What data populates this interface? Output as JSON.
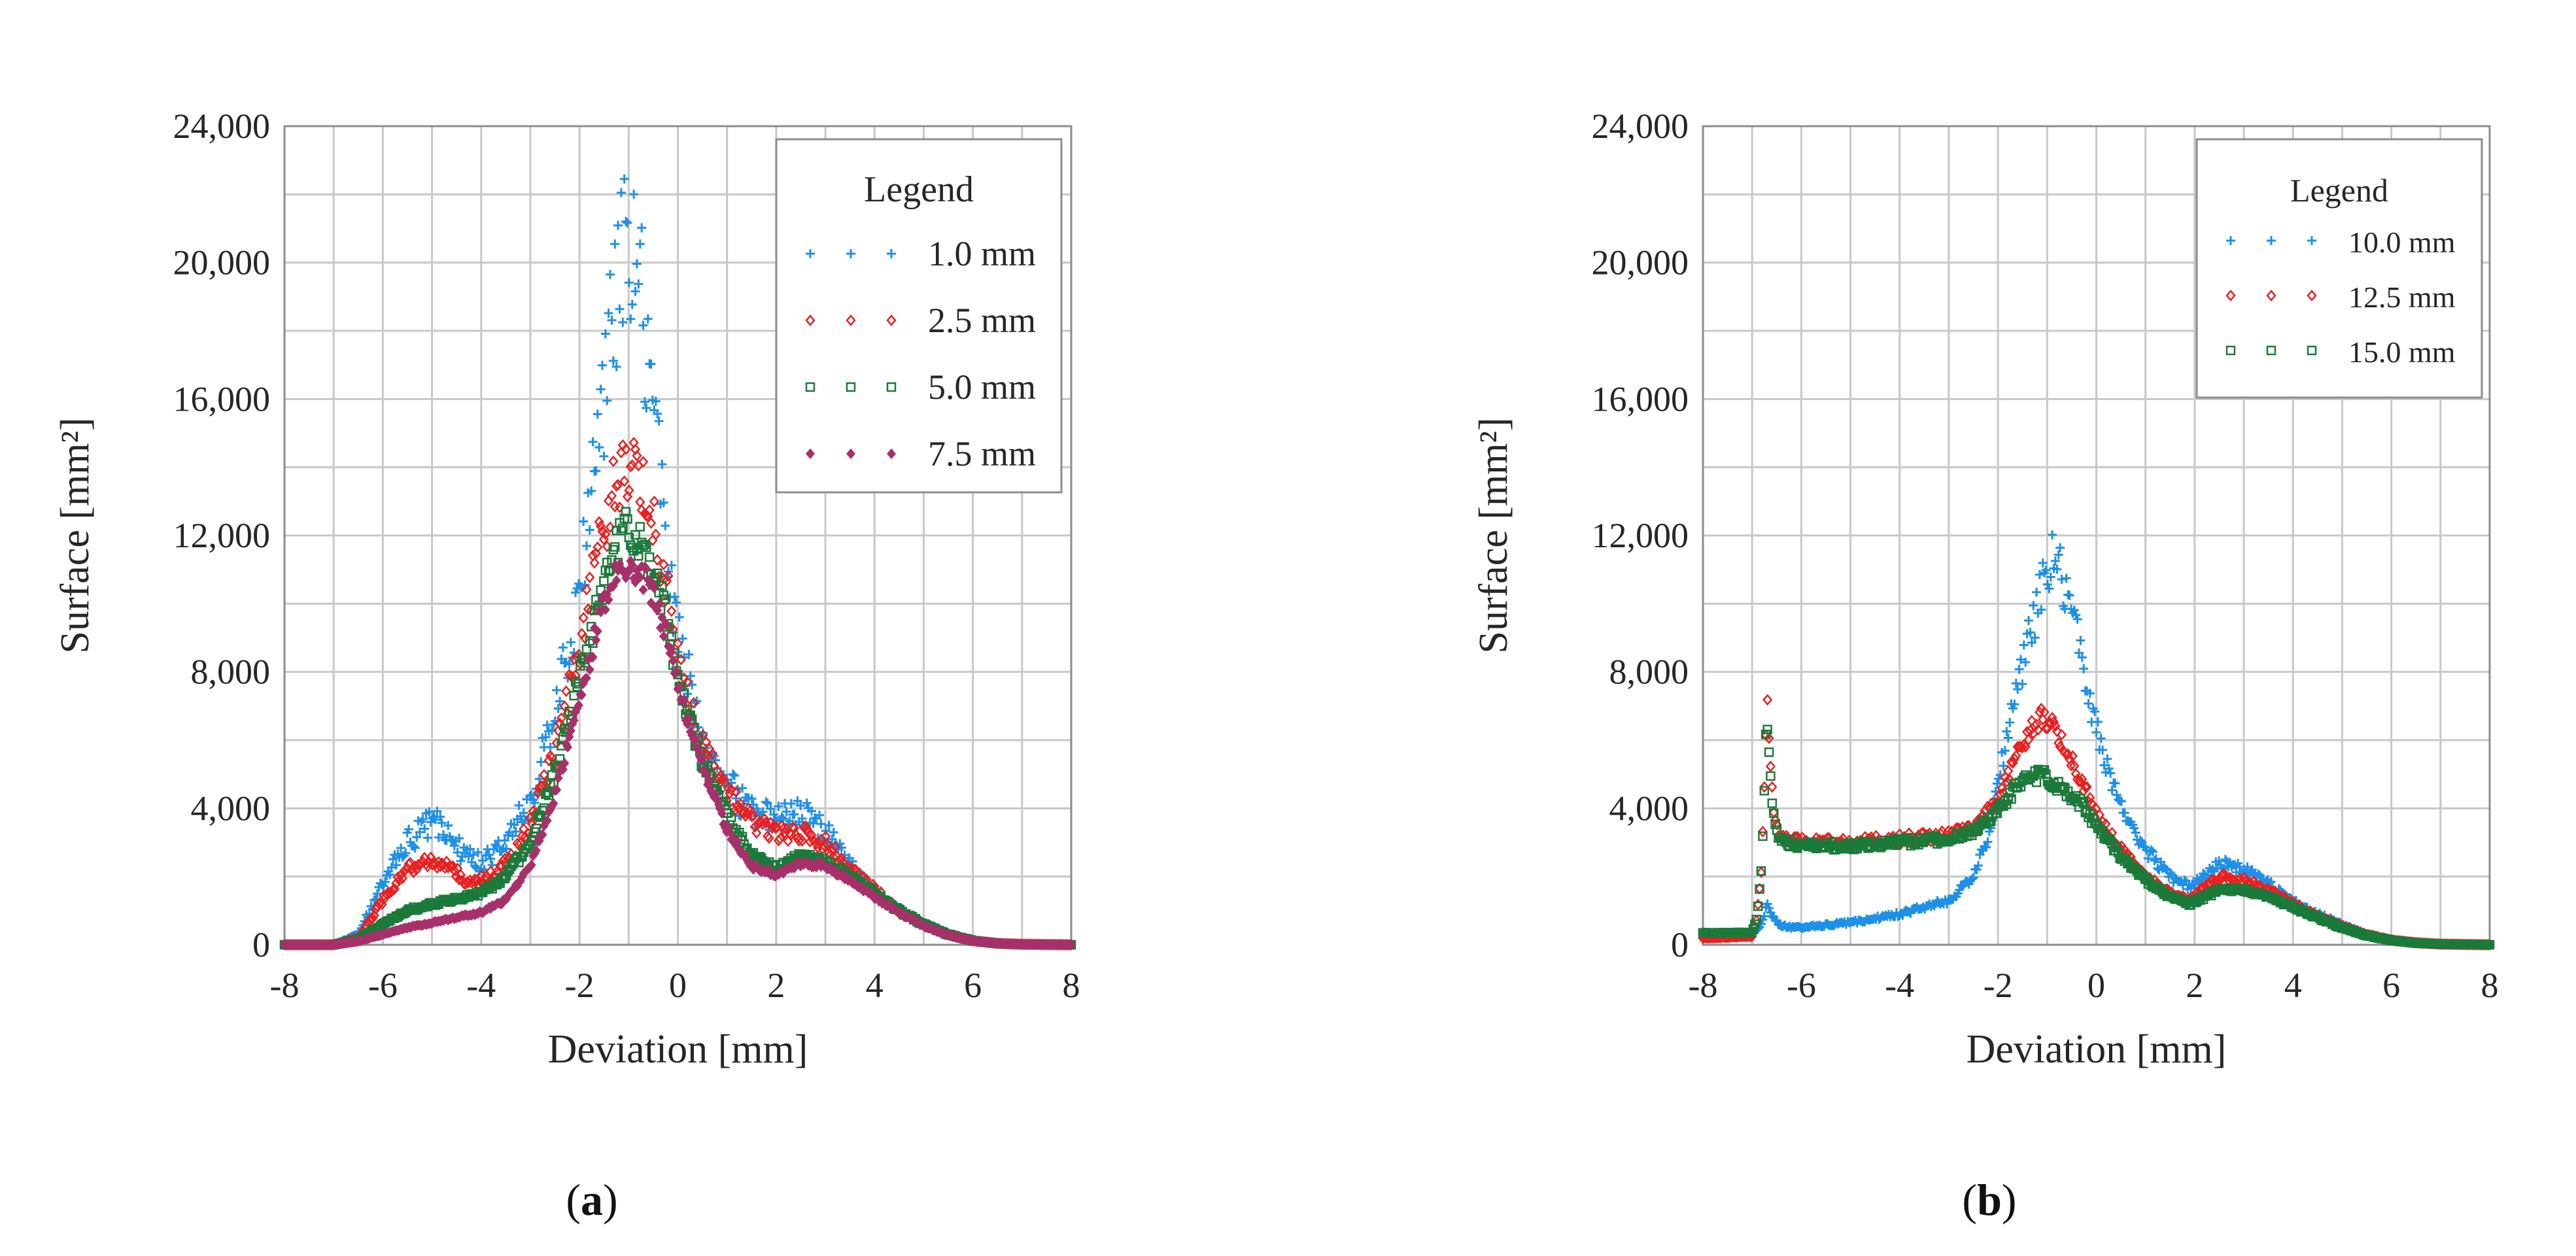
{
  "chart_data": [
    {
      "type": "scatter",
      "panel": "a",
      "caption_letter": "a",
      "xlabel": "Deviation [mm]",
      "ylabel": "Surface [mm²]",
      "xlim": [
        -8,
        8
      ],
      "ylim": [
        0,
        24000
      ],
      "xticks": [
        -8,
        -6,
        -4,
        -2,
        0,
        2,
        4,
        6,
        8
      ],
      "yticks": [
        0,
        4000,
        8000,
        12000,
        16000,
        20000,
        24000
      ],
      "xtick_labels": [
        "-8",
        "-6",
        "-4",
        "-2",
        "0",
        "2",
        "4",
        "6",
        "8"
      ],
      "ytick_labels": [
        "0",
        "4,000",
        "8,000",
        "12,000",
        "16,000",
        "20,000",
        "24,000"
      ],
      "grid": true,
      "legend": {
        "title": "Legend",
        "position": "top-right"
      },
      "series": [
        {
          "name": "1.0 mm",
          "marker": "plus",
          "color": "#1e90e8",
          "profile": [
            [
              -8,
              0
            ],
            [
              -7,
              0
            ],
            [
              -6.5,
              300
            ],
            [
              -6,
              1800
            ],
            [
              -5.5,
              3000
            ],
            [
              -5,
              3600
            ],
            [
              -4.7,
              3400
            ],
            [
              -4.4,
              2700
            ],
            [
              -4,
              2400
            ],
            [
              -3.6,
              2800
            ],
            [
              -3,
              4200
            ],
            [
              -2.5,
              6800
            ],
            [
              -2,
              10500
            ],
            [
              -1.6,
              14500
            ],
            [
              -1.3,
              18800
            ],
            [
              -1,
              21000
            ],
            [
              -0.8,
              19800
            ],
            [
              -0.6,
              17000
            ],
            [
              -0.3,
              13000
            ],
            [
              0,
              9000
            ],
            [
              0.5,
              6000
            ],
            [
              1,
              4700
            ],
            [
              1.5,
              3900
            ],
            [
              2,
              3700
            ],
            [
              2.5,
              3900
            ],
            [
              3,
              3300
            ],
            [
              3.5,
              2300
            ],
            [
              4,
              1600
            ],
            [
              4.5,
              1000
            ],
            [
              5,
              600
            ],
            [
              5.5,
              300
            ],
            [
              6,
              120
            ],
            [
              6.5,
              40
            ],
            [
              7,
              15
            ],
            [
              8,
              0
            ]
          ],
          "noise": 0.12
        },
        {
          "name": "2.5 mm",
          "marker": "diamond-open",
          "color": "#e82020",
          "profile": [
            [
              -8,
              0
            ],
            [
              -7,
              0
            ],
            [
              -6.5,
              200
            ],
            [
              -6,
              1300
            ],
            [
              -5.5,
              2200
            ],
            [
              -5,
              2500
            ],
            [
              -4.6,
              2200
            ],
            [
              -4.2,
              1800
            ],
            [
              -3.8,
              2000
            ],
            [
              -3.4,
              2500
            ],
            [
              -3,
              3500
            ],
            [
              -2.5,
              5600
            ],
            [
              -2,
              8600
            ],
            [
              -1.6,
              11500
            ],
            [
              -1.3,
              13500
            ],
            [
              -1,
              14000
            ],
            [
              -0.8,
              13600
            ],
            [
              -0.5,
              12200
            ],
            [
              -0.2,
              10200
            ],
            [
              0,
              8200
            ],
            [
              0.5,
              5800
            ],
            [
              1,
              4500
            ],
            [
              1.5,
              3600
            ],
            [
              2,
              3300
            ],
            [
              2.5,
              3300
            ],
            [
              3,
              3000
            ],
            [
              3.5,
              2200
            ],
            [
              4,
              1600
            ],
            [
              4.5,
              1000
            ],
            [
              5,
              600
            ],
            [
              5.5,
              300
            ],
            [
              6,
              120
            ],
            [
              6.5,
              40
            ],
            [
              7,
              15
            ],
            [
              8,
              0
            ]
          ],
          "noise": 0.08
        },
        {
          "name": "5.0 mm",
          "marker": "square-open",
          "color": "#1a7a3a",
          "profile": [
            [
              -8,
              0
            ],
            [
              -7,
              0
            ],
            [
              -6.5,
              150
            ],
            [
              -6,
              600
            ],
            [
              -5.5,
              1000
            ],
            [
              -5,
              1200
            ],
            [
              -4.5,
              1350
            ],
            [
              -4,
              1500
            ],
            [
              -3.5,
              2000
            ],
            [
              -3,
              3000
            ],
            [
              -2.5,
              5000
            ],
            [
              -2,
              7800
            ],
            [
              -1.6,
              10000
            ],
            [
              -1.3,
              11600
            ],
            [
              -1,
              12300
            ],
            [
              -0.8,
              12000
            ],
            [
              -0.5,
              11000
            ],
            [
              -0.2,
              9400
            ],
            [
              0,
              7800
            ],
            [
              0.5,
              5400
            ],
            [
              1,
              3800
            ],
            [
              1.5,
              2600
            ],
            [
              2,
              2200
            ],
            [
              2.5,
              2600
            ],
            [
              3,
              2400
            ],
            [
              3.5,
              2000
            ],
            [
              4,
              1500
            ],
            [
              4.5,
              1000
            ],
            [
              5,
              600
            ],
            [
              5.5,
              300
            ],
            [
              6,
              120
            ],
            [
              6.5,
              40
            ],
            [
              7,
              15
            ],
            [
              8,
              0
            ]
          ],
          "noise": 0.05
        },
        {
          "name": "7.5 mm",
          "marker": "diamond-filled",
          "color": "#a8306a",
          "profile": [
            [
              -8,
              0
            ],
            [
              -7,
              0
            ],
            [
              -6.5,
              100
            ],
            [
              -6,
              300
            ],
            [
              -5.5,
              500
            ],
            [
              -5,
              650
            ],
            [
              -4.5,
              800
            ],
            [
              -4,
              950
            ],
            [
              -3.5,
              1300
            ],
            [
              -3,
              2300
            ],
            [
              -2.5,
              4400
            ],
            [
              -2,
              7200
            ],
            [
              -1.6,
              9500
            ],
            [
              -1.3,
              10800
            ],
            [
              -1,
              11200
            ],
            [
              -0.8,
              11000
            ],
            [
              -0.5,
              10300
            ],
            [
              -0.2,
              9000
            ],
            [
              0,
              7600
            ],
            [
              0.5,
              5200
            ],
            [
              1,
              3400
            ],
            [
              1.5,
              2300
            ],
            [
              2,
              2050
            ],
            [
              2.5,
              2400
            ],
            [
              3,
              2300
            ],
            [
              3.5,
              1900
            ],
            [
              4,
              1400
            ],
            [
              4.5,
              950
            ],
            [
              5,
              550
            ],
            [
              5.5,
              280
            ],
            [
              6,
              110
            ],
            [
              6.5,
              40
            ],
            [
              7,
              15
            ],
            [
              8,
              0
            ]
          ],
          "noise": 0.04
        }
      ]
    },
    {
      "type": "scatter",
      "panel": "b",
      "caption_letter": "b",
      "xlabel": "Deviation [mm]",
      "ylabel": "Surface [mm²]",
      "xlim": [
        -8,
        8
      ],
      "ylim": [
        0,
        24000
      ],
      "xticks": [
        -8,
        -6,
        -4,
        -2,
        0,
        2,
        4,
        6,
        8
      ],
      "yticks": [
        0,
        4000,
        8000,
        12000,
        16000,
        20000,
        24000
      ],
      "xtick_labels": [
        "-8",
        "-6",
        "-4",
        "-2",
        "0",
        "2",
        "4",
        "6",
        "8"
      ],
      "ytick_labels": [
        "0",
        "4,000",
        "8,000",
        "12,000",
        "16,000",
        "20,000",
        "24,000"
      ],
      "grid": true,
      "legend": {
        "title": "Legend",
        "position": "top-right"
      },
      "series": [
        {
          "name": "10.0 mm",
          "marker": "plus",
          "color": "#1e90e8",
          "profile": [
            [
              -8,
              300
            ],
            [
              -7,
              300
            ],
            [
              -6.8,
              600
            ],
            [
              -6.7,
              1200
            ],
            [
              -6.6,
              800
            ],
            [
              -6.4,
              550
            ],
            [
              -6,
              500
            ],
            [
              -5,
              650
            ],
            [
              -4,
              900
            ],
            [
              -3,
              1300
            ],
            [
              -2.5,
              2000
            ],
            [
              -2.2,
              3200
            ],
            [
              -2,
              4800
            ],
            [
              -1.7,
              6800
            ],
            [
              -1.4,
              8800
            ],
            [
              -1.1,
              10500
            ],
            [
              -0.9,
              11500
            ],
            [
              -0.7,
              10800
            ],
            [
              -0.4,
              9200
            ],
            [
              -0.1,
              7000
            ],
            [
              0.2,
              5200
            ],
            [
              0.6,
              3800
            ],
            [
              1,
              2800
            ],
            [
              1.5,
              2000
            ],
            [
              1.9,
              1700
            ],
            [
              2.2,
              2000
            ],
            [
              2.5,
              2400
            ],
            [
              3,
              2200
            ],
            [
              3.5,
              1800
            ],
            [
              4,
              1300
            ],
            [
              4.5,
              900
            ],
            [
              5,
              600
            ],
            [
              5.5,
              300
            ],
            [
              6,
              150
            ],
            [
              6.5,
              60
            ],
            [
              7,
              20
            ],
            [
              8,
              0
            ]
          ],
          "noise": 0.07
        },
        {
          "name": "12.5 mm",
          "marker": "diamond-open",
          "color": "#e82020",
          "profile": [
            [
              -8,
              200
            ],
            [
              -7,
              250
            ],
            [
              -6.9,
              800
            ],
            [
              -6.8,
              2500
            ],
            [
              -6.7,
              7200
            ],
            [
              -6.6,
              4500
            ],
            [
              -6.5,
              3400
            ],
            [
              -6.3,
              3100
            ],
            [
              -6,
              3000
            ],
            [
              -5,
              3000
            ],
            [
              -4,
              3100
            ],
            [
              -3,
              3200
            ],
            [
              -2.5,
              3400
            ],
            [
              -2,
              4200
            ],
            [
              -1.7,
              5200
            ],
            [
              -1.4,
              6200
            ],
            [
              -1.1,
              6700
            ],
            [
              -0.9,
              6400
            ],
            [
              -0.6,
              5600
            ],
            [
              -0.3,
              4800
            ],
            [
              0,
              3800
            ],
            [
              0.5,
              2800
            ],
            [
              1,
              2000
            ],
            [
              1.5,
              1500
            ],
            [
              1.9,
              1300
            ],
            [
              2.2,
              1700
            ],
            [
              2.5,
              2000
            ],
            [
              3,
              1900
            ],
            [
              3.5,
              1600
            ],
            [
              4,
              1200
            ],
            [
              4.5,
              850
            ],
            [
              5,
              550
            ],
            [
              5.5,
              300
            ],
            [
              6,
              140
            ],
            [
              6.5,
              60
            ],
            [
              7,
              20
            ],
            [
              8,
              0
            ]
          ],
          "noise": 0.05
        },
        {
          "name": "15.0 mm",
          "marker": "square-open",
          "color": "#1a7a3a",
          "profile": [
            [
              -8,
              350
            ],
            [
              -7,
              350
            ],
            [
              -6.9,
              800
            ],
            [
              -6.8,
              2500
            ],
            [
              -6.7,
              6800
            ],
            [
              -6.6,
              4400
            ],
            [
              -6.5,
              3300
            ],
            [
              -6.3,
              3000
            ],
            [
              -6,
              2900
            ],
            [
              -5,
              2900
            ],
            [
              -4,
              3000
            ],
            [
              -3,
              3100
            ],
            [
              -2.5,
              3300
            ],
            [
              -2,
              3900
            ],
            [
              -1.7,
              4500
            ],
            [
              -1.4,
              4900
            ],
            [
              -1.1,
              5000
            ],
            [
              -0.9,
              4800
            ],
            [
              -0.6,
              4500
            ],
            [
              -0.3,
              4100
            ],
            [
              0,
              3500
            ],
            [
              0.5,
              2600
            ],
            [
              1,
              1900
            ],
            [
              1.5,
              1400
            ],
            [
              1.9,
              1200
            ],
            [
              2.2,
              1400
            ],
            [
              2.5,
              1600
            ],
            [
              3,
              1600
            ],
            [
              3.5,
              1400
            ],
            [
              4,
              1100
            ],
            [
              4.5,
              800
            ],
            [
              5,
              500
            ],
            [
              5.5,
              270
            ],
            [
              6,
              130
            ],
            [
              6.5,
              50
            ],
            [
              7,
              20
            ],
            [
              8,
              0
            ]
          ],
          "noise": 0.04
        }
      ]
    }
  ]
}
